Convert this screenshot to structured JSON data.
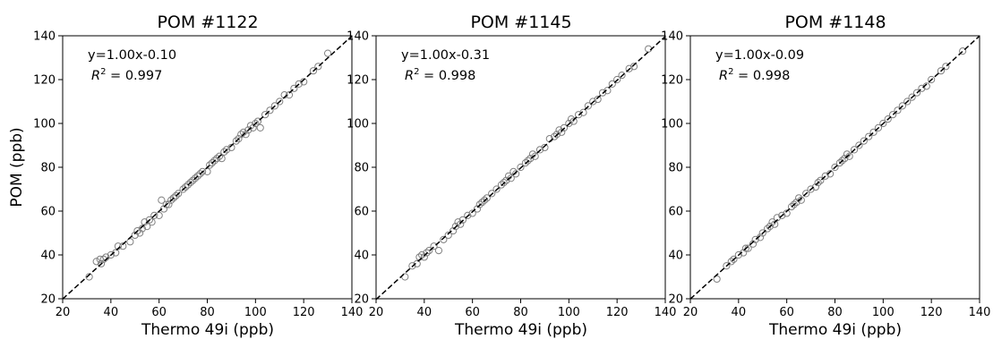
{
  "figure": {
    "ylabel": "POM (ppb)"
  },
  "chart_data": [
    {
      "type": "scatter",
      "title": "POM #1122",
      "xlabel": "Thermo 49i (ppb)",
      "ylabel": "POM (ppb)",
      "xlim": [
        20,
        140
      ],
      "ylim": [
        20,
        140
      ],
      "xticks": [
        "20",
        "40",
        "60",
        "80",
        "100",
        "120",
        "140"
      ],
      "yticks": [
        "20",
        "40",
        "60",
        "80",
        "100",
        "120",
        "140"
      ],
      "fit": {
        "slope": 1.0,
        "intercept": -0.1
      },
      "annotation": {
        "equation": "y=1.00x-0.10",
        "r2_label": "R",
        "r2_sup": "2",
        "r2_value": " = 0.997"
      },
      "marker_color": "#808080",
      "fit_line_color": "#000000",
      "series": [
        {
          "x": [
            31,
            34,
            35.5,
            36,
            37,
            38,
            40,
            42,
            43,
            45,
            48,
            50,
            51,
            52,
            53,
            54,
            55,
            56,
            57,
            58,
            60,
            61,
            62,
            63,
            64,
            65,
            66,
            67,
            68,
            70,
            71,
            72,
            73,
            74,
            75,
            76,
            77,
            78,
            80,
            81,
            82,
            83,
            84,
            85,
            86,
            87,
            88,
            90,
            92,
            93,
            94,
            95,
            96,
            97,
            98,
            99,
            100,
            101,
            102,
            104,
            106,
            108,
            110,
            112,
            114,
            116,
            118,
            120,
            124,
            126,
            130
          ],
          "y": [
            30,
            37,
            38,
            36,
            38,
            39,
            40,
            41,
            44,
            44,
            46,
            49,
            51,
            50,
            52,
            55,
            53,
            56,
            55,
            58,
            58,
            65,
            61,
            63,
            63,
            65,
            66,
            67,
            68,
            70,
            71,
            72,
            73,
            74,
            75,
            76,
            77,
            78,
            78,
            81,
            82,
            83,
            84,
            85,
            84,
            87,
            88,
            89,
            92,
            93,
            95,
            96,
            95,
            97,
            99,
            98,
            100,
            101,
            98,
            104,
            106,
            108,
            110,
            113,
            113,
            116,
            118,
            119,
            124,
            126,
            132
          ]
        }
      ]
    },
    {
      "type": "scatter",
      "title": "POM #1145",
      "xlabel": "Thermo 49i (ppb)",
      "ylabel": "",
      "xlim": [
        20,
        140
      ],
      "ylim": [
        20,
        140
      ],
      "xticks": [
        "20",
        "40",
        "60",
        "80",
        "100",
        "120",
        "140"
      ],
      "yticks": [
        "20",
        "40",
        "60",
        "80",
        "100",
        "120",
        "140"
      ],
      "fit": {
        "slope": 1.0,
        "intercept": -0.31
      },
      "annotation": {
        "equation": "y=1.00x-0.31",
        "r2_label": "R",
        "r2_sup": "2",
        "r2_value": " = 0.998"
      },
      "marker_color": "#808080",
      "fit_line_color": "#000000",
      "series": [
        {
          "x": [
            32,
            35,
            37,
            38,
            39,
            40,
            41,
            42,
            44,
            46,
            48,
            50,
            52,
            53,
            54,
            55,
            56,
            58,
            60,
            62,
            63,
            64,
            65,
            66,
            68,
            70,
            72,
            73,
            74,
            75,
            76,
            77,
            78,
            80,
            82,
            83,
            84,
            85,
            86,
            88,
            90,
            92,
            94,
            95,
            96,
            97,
            98,
            100,
            101,
            102,
            104,
            106,
            108,
            110,
            112,
            114,
            116,
            118,
            120,
            122,
            125,
            127,
            133
          ],
          "y": [
            30,
            35,
            36,
            39,
            40,
            39,
            41,
            42,
            44,
            42,
            47,
            49,
            51,
            53,
            55,
            54,
            56,
            58,
            59,
            61,
            63,
            64,
            65,
            66,
            68,
            70,
            72,
            73,
            74,
            76,
            75,
            78,
            77,
            80,
            82,
            83,
            84,
            86,
            85,
            88,
            89,
            93,
            94,
            95,
            97,
            96,
            98,
            100,
            102,
            101,
            104,
            105,
            108,
            110,
            111,
            114,
            115,
            118,
            120,
            122,
            125,
            126,
            134
          ]
        }
      ]
    },
    {
      "type": "scatter",
      "title": "POM #1148",
      "xlabel": "Thermo 49i (ppb)",
      "ylabel": "",
      "xlim": [
        20,
        140
      ],
      "ylim": [
        20,
        140
      ],
      "xticks": [
        "20",
        "40",
        "60",
        "80",
        "100",
        "120",
        "140"
      ],
      "yticks": [
        "20",
        "40",
        "60",
        "80",
        "100",
        "120",
        "140"
      ],
      "fit": {
        "slope": 1.0,
        "intercept": -0.09
      },
      "annotation": {
        "equation": "y=1.00x-0.09",
        "r2_label": "R",
        "r2_sup": "2",
        "r2_value": " = 0.998"
      },
      "marker_color": "#808080",
      "fit_line_color": "#000000",
      "series": [
        {
          "x": [
            31,
            35,
            37,
            38,
            40,
            42,
            43,
            44,
            46,
            47,
            49,
            50,
            52,
            53,
            54,
            55,
            56,
            58,
            60,
            62,
            63,
            64,
            65,
            66,
            68,
            70,
            72,
            73,
            74,
            76,
            78,
            80,
            82,
            83,
            84,
            85,
            86,
            88,
            90,
            92,
            94,
            96,
            98,
            100,
            102,
            104,
            106,
            108,
            110,
            112,
            114,
            116,
            118,
            120,
            124,
            126,
            133
          ],
          "y": [
            29,
            35,
            37,
            38,
            40,
            41,
            43,
            43,
            45,
            47,
            48,
            50,
            52,
            53,
            55,
            54,
            57,
            58,
            59,
            62,
            63,
            64,
            66,
            65,
            68,
            70,
            71,
            73,
            74,
            76,
            77,
            80,
            82,
            83,
            84,
            86,
            85,
            88,
            90,
            92,
            94,
            96,
            98,
            100,
            102,
            104,
            106,
            108,
            110,
            112,
            114,
            116,
            117,
            120,
            124,
            126,
            133
          ]
        }
      ]
    }
  ]
}
